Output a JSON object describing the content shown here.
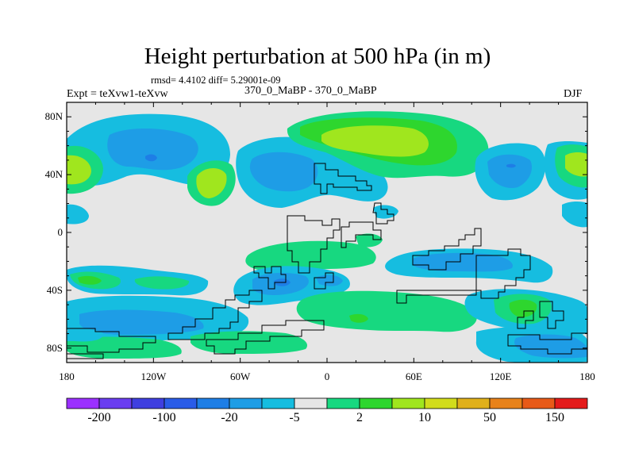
{
  "title": "Height perturbation at 500 hPa (in m)",
  "stats_line": "rmsd= 4.4102  diff= 5.29001e-09",
  "left_label": "Expt = teXvw1-teXvw",
  "center_label": "370_0_MaBP - 370_0_MaBP",
  "right_label": "DJF",
  "map": {
    "lon_range": [
      -180,
      180
    ],
    "lat_range": [
      -90,
      90
    ],
    "background_color": "#e6e6e6",
    "y_ticks": [
      {
        "lat": 80,
        "label": "80N"
      },
      {
        "lat": 40,
        "label": "40N"
      },
      {
        "lat": 0,
        "label": "0"
      },
      {
        "lat": -40,
        "label": "40S"
      },
      {
        "lat": -80,
        "label": "80S"
      }
    ],
    "x_ticks": [
      {
        "lon": -180,
        "label": "180"
      },
      {
        "lon": -120,
        "label": "120W"
      },
      {
        "lon": -60,
        "label": "60W"
      },
      {
        "lon": 0,
        "label": "0"
      },
      {
        "lon": 60,
        "label": "60E"
      },
      {
        "lon": 120,
        "label": "120E"
      },
      {
        "lon": 180,
        "label": "180"
      }
    ]
  },
  "colorbar": {
    "colors": [
      "#9b30ff",
      "#6a3df0",
      "#3f3fe0",
      "#2a5ce8",
      "#1e7ee6",
      "#1e9de6",
      "#16bde0",
      "#e6e6e6",
      "#17d880",
      "#2ed62e",
      "#a0e61e",
      "#d2dc1c",
      "#e0b01a",
      "#e8821a",
      "#e85a18",
      "#e41a1a"
    ],
    "labels": [
      {
        "index": 1,
        "text": "-200"
      },
      {
        "index": 3,
        "text": "-100"
      },
      {
        "index": 5,
        "text": "-20"
      },
      {
        "index": 7,
        "text": "-5"
      },
      {
        "index": 9,
        "text": "2"
      },
      {
        "index": 11,
        "text": "10"
      },
      {
        "index": 13,
        "text": "50"
      },
      {
        "index": 15,
        "text": "150"
      }
    ]
  },
  "colors": {
    "cyan": "#16bde0",
    "blue": "#1e9de6",
    "deep_blue": "#1e7ee6",
    "green": "#17d880",
    "bright_green": "#2ed62e",
    "yellow_green": "#a0e61e",
    "coastline": "#000000"
  }
}
